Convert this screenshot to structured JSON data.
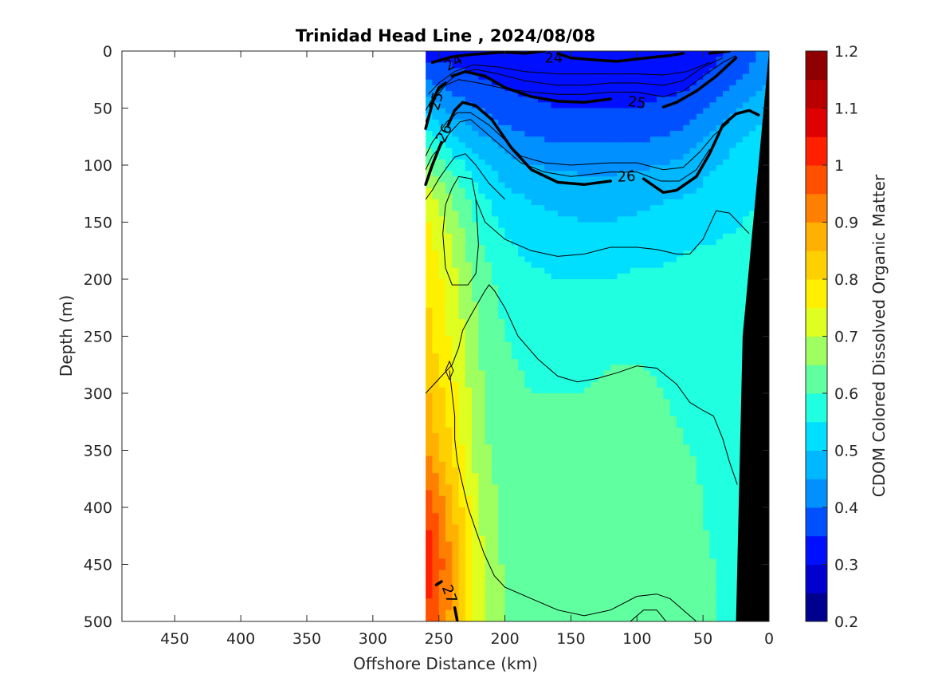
{
  "chart_data": {
    "type": "heatmap",
    "title": "Trinidad Head Line , 2024/08/08",
    "xlabel": "Offshore Distance (km)",
    "ylabel": "Depth (m)",
    "colorbar_label": "CDOM Colored Dissolved Organic Matter",
    "xlim": [
      490,
      0
    ],
    "ylim": [
      0,
      500
    ],
    "x_reversed": true,
    "y_reversed": true,
    "x_ticks": [
      450,
      400,
      350,
      300,
      250,
      200,
      150,
      100,
      50,
      0
    ],
    "y_ticks": [
      0,
      50,
      100,
      150,
      200,
      250,
      300,
      350,
      400,
      450,
      500
    ],
    "colorbar": {
      "min": 0.2,
      "max": 1.2,
      "levels": 20,
      "ticks": [
        1.2,
        1.1,
        1,
        0.9,
        0.8,
        0.7,
        0.6,
        0.5,
        0.4,
        0.3,
        0.2
      ],
      "colors": [
        "#00008f",
        "#0000cf",
        "#0010ff",
        "#0050ff",
        "#0090ff",
        "#00b8ff",
        "#00dfff",
        "#20ffdf",
        "#60ff9f",
        "#a0ff60",
        "#dfff20",
        "#fff000",
        "#ffd000",
        "#ffb000",
        "#ff8000",
        "#ff5000",
        "#ff2000",
        "#df0000",
        "#b80000",
        "#8f0000"
      ]
    },
    "data_extent_km": [
      260,
      0
    ],
    "field_profiles": {
      "distance_km": [
        260,
        240,
        220,
        200,
        180,
        160,
        140,
        120,
        100,
        80,
        60,
        40,
        20,
        0
      ],
      "depth_m": [
        0,
        25,
        50,
        75,
        100,
        125,
        150,
        200,
        250,
        300,
        350,
        400,
        450,
        500
      ],
      "cdom": [
        [
          0.33,
          0.33,
          0.33,
          0.33,
          0.33,
          0.33,
          0.33,
          0.33,
          0.33,
          0.33,
          0.33,
          0.34,
          0.37,
          0.42
        ],
        [
          0.4,
          0.37,
          0.35,
          0.34,
          0.33,
          0.33,
          0.33,
          0.33,
          0.33,
          0.33,
          0.34,
          0.36,
          0.4,
          0.45
        ],
        [
          0.48,
          0.43,
          0.4,
          0.37,
          0.36,
          0.35,
          0.35,
          0.35,
          0.35,
          0.36,
          0.37,
          0.42,
          0.46,
          0.5
        ],
        [
          0.58,
          0.5,
          0.46,
          0.42,
          0.4,
          0.39,
          0.39,
          0.39,
          0.39,
          0.4,
          0.42,
          0.47,
          0.5,
          0.52
        ],
        [
          0.66,
          0.58,
          0.52,
          0.47,
          0.45,
          0.44,
          0.44,
          0.44,
          0.44,
          0.45,
          0.47,
          0.5,
          0.52,
          0.54
        ],
        [
          0.72,
          0.64,
          0.56,
          0.51,
          0.49,
          0.48,
          0.47,
          0.47,
          0.48,
          0.49,
          0.5,
          0.52,
          0.54,
          0.55
        ],
        [
          0.76,
          0.68,
          0.59,
          0.54,
          0.52,
          0.51,
          0.5,
          0.5,
          0.51,
          0.52,
          0.53,
          0.54,
          0.55,
          0.56
        ],
        [
          0.8,
          0.72,
          0.63,
          0.58,
          0.56,
          0.55,
          0.55,
          0.55,
          0.56,
          0.56,
          0.57,
          0.57,
          0.57,
          0.58
        ],
        [
          0.82,
          0.74,
          0.65,
          0.6,
          0.59,
          0.58,
          0.58,
          0.59,
          0.59,
          0.59,
          0.58,
          0.58,
          0.58,
          0.58
        ],
        [
          0.86,
          0.77,
          0.66,
          0.61,
          0.6,
          0.6,
          0.6,
          0.61,
          0.61,
          0.6,
          0.59,
          0.58,
          0.58,
          0.58
        ],
        [
          0.9,
          0.8,
          0.67,
          0.62,
          0.61,
          0.61,
          0.62,
          0.62,
          0.62,
          0.61,
          0.6,
          0.59,
          0.58,
          0.58
        ],
        [
          1.0,
          0.86,
          0.7,
          0.63,
          0.62,
          0.62,
          0.63,
          0.63,
          0.63,
          0.62,
          0.61,
          0.59,
          0.58,
          0.58
        ],
        [
          1.04,
          0.9,
          0.72,
          0.64,
          0.63,
          0.63,
          0.63,
          0.64,
          0.64,
          0.63,
          0.61,
          0.6,
          0.58,
          0.58
        ],
        [
          1.0,
          0.88,
          0.72,
          0.65,
          0.63,
          0.63,
          0.63,
          0.64,
          0.64,
          0.63,
          0.62,
          0.6,
          0.58,
          0.58
        ]
      ]
    },
    "bottom_mask": [
      [
        25,
        500
      ],
      [
        0,
        500
      ],
      [
        0,
        0
      ],
      [
        20,
        250
      ]
    ],
    "isopycnals": [
      {
        "label": "24",
        "bold": true,
        "points": [
          [
            255,
            10
          ],
          [
            240,
            5
          ],
          [
            225,
            3
          ],
          [
            200,
            1
          ],
          [
            185,
            2
          ],
          [
            170,
            0
          ]
        ],
        "points2": [
          [
            160,
            2
          ],
          [
            150,
            6
          ],
          [
            130,
            8
          ],
          [
            115,
            9
          ],
          [
            100,
            7
          ],
          [
            85,
            5
          ],
          [
            75,
            4
          ],
          [
            65,
            2
          ]
        ],
        "points3": [
          [
            45,
            2
          ],
          [
            30,
            0
          ]
        ]
      },
      {
        "label": "25",
        "bold": true,
        "points": [
          [
            260,
            68
          ],
          [
            257,
            55
          ],
          [
            254,
            42
          ],
          [
            250,
            32
          ],
          [
            245,
            28
          ]
        ],
        "points2": [
          [
            240,
            22
          ],
          [
            230,
            18
          ],
          [
            215,
            22
          ],
          [
            200,
            32
          ],
          [
            180,
            40
          ],
          [
            160,
            44
          ],
          [
            140,
            45
          ],
          [
            120,
            42
          ]
        ],
        "points3": [
          [
            80,
            49
          ],
          [
            70,
            45
          ],
          [
            55,
            35
          ],
          [
            40,
            22
          ],
          [
            25,
            6
          ]
        ]
      },
      {
        "label": "26",
        "bold": true,
        "points": [
          [
            260,
            117
          ],
          [
            255,
            100
          ],
          [
            248,
            80
          ]
        ],
        "points2": [
          [
            243,
            65
          ],
          [
            238,
            52
          ],
          [
            232,
            45
          ],
          [
            222,
            48
          ],
          [
            210,
            60
          ],
          [
            195,
            85
          ],
          [
            180,
            104
          ],
          [
            160,
            115
          ],
          [
            140,
            117
          ],
          [
            120,
            114
          ]
        ],
        "points3": [
          [
            95,
            112
          ],
          [
            80,
            124
          ],
          [
            70,
            122
          ],
          [
            55,
            110
          ],
          [
            45,
            90
          ],
          [
            35,
            65
          ],
          [
            25,
            55
          ],
          [
            15,
            52
          ],
          [
            8,
            56
          ]
        ]
      },
      {
        "label": "27",
        "bold": true,
        "points": [
          [
            236,
            500
          ],
          [
            238,
            488
          ]
        ],
        "points2": [
          [
            248,
            465
          ],
          [
            252,
            468
          ]
        ],
        "points3": []
      }
    ],
    "thin_contours": [
      [
        [
          260,
          62
        ],
        [
          256,
          50
        ],
        [
          252,
          40
        ],
        [
          245,
          30
        ],
        [
          235,
          25
        ],
        [
          220,
          28
        ],
        [
          200,
          33
        ],
        [
          180,
          36
        ],
        [
          160,
          38
        ],
        [
          140,
          38
        ],
        [
          120,
          36
        ],
        [
          100,
          36
        ],
        [
          80,
          40
        ],
        [
          65,
          35
        ],
        [
          50,
          22
        ],
        [
          35,
          10
        ],
        [
          25,
          4
        ]
      ],
      [
        [
          260,
          52
        ],
        [
          254,
          40
        ],
        [
          246,
          30
        ],
        [
          236,
          20
        ],
        [
          222,
          16
        ],
        [
          205,
          20
        ],
        [
          185,
          26
        ],
        [
          160,
          30
        ],
        [
          140,
          30
        ],
        [
          120,
          28
        ],
        [
          100,
          28
        ],
        [
          80,
          30
        ],
        [
          65,
          26
        ],
        [
          50,
          14
        ],
        [
          35,
          6
        ]
      ],
      [
        [
          258,
          38
        ],
        [
          250,
          28
        ],
        [
          238,
          18
        ],
        [
          224,
          12
        ],
        [
          205,
          14
        ],
        [
          185,
          18
        ],
        [
          160,
          20
        ],
        [
          130,
          20
        ],
        [
          100,
          20
        ],
        [
          80,
          21
        ],
        [
          62,
          18
        ],
        [
          45,
          10
        ]
      ],
      [
        [
          260,
          92
        ],
        [
          255,
          80
        ],
        [
          250,
          72
        ],
        [
          244,
          62
        ],
        [
          236,
          54
        ],
        [
          226,
          54
        ],
        [
          212,
          65
        ],
        [
          200,
          78
        ],
        [
          188,
          92
        ],
        [
          170,
          98
        ],
        [
          150,
          100
        ],
        [
          120,
          98
        ],
        [
          100,
          98
        ],
        [
          80,
          104
        ],
        [
          65,
          102
        ],
        [
          52,
          88
        ],
        [
          42,
          74
        ],
        [
          30,
          62
        ]
      ],
      [
        [
          260,
          104
        ],
        [
          255,
          92
        ],
        [
          249,
          84
        ],
        [
          242,
          72
        ],
        [
          234,
          62
        ],
        [
          226,
          60
        ],
        [
          214,
          72
        ],
        [
          202,
          84
        ],
        [
          188,
          98
        ],
        [
          170,
          106
        ],
        [
          150,
          110
        ],
        [
          120,
          106
        ],
        [
          100,
          106
        ],
        [
          82,
          114
        ],
        [
          68,
          114
        ],
        [
          55,
          104
        ],
        [
          45,
          86
        ]
      ],
      [
        [
          260,
          130
        ],
        [
          255,
          122
        ],
        [
          250,
          112
        ],
        [
          244,
          102
        ],
        [
          238,
          93
        ],
        [
          230,
          90
        ],
        [
          222,
          100
        ],
        [
          212,
          116
        ],
        [
          200,
          130
        ]
      ],
      [
        [
          240,
          120
        ],
        [
          235,
          110
        ],
        [
          225,
          112
        ],
        [
          222,
          130
        ],
        [
          220,
          170
        ],
        [
          222,
          195
        ],
        [
          228,
          205
        ],
        [
          240,
          205
        ],
        [
          245,
          190
        ],
        [
          247,
          160
        ],
        [
          245,
          135
        ],
        [
          240,
          120
        ]
      ],
      [
        [
          222,
          130
        ],
        [
          215,
          150
        ],
        [
          200,
          165
        ],
        [
          180,
          175
        ],
        [
          160,
          180
        ],
        [
          140,
          178
        ],
        [
          120,
          172
        ],
        [
          100,
          172
        ],
        [
          85,
          174
        ],
        [
          70,
          178
        ],
        [
          60,
          178
        ],
        [
          50,
          165
        ],
        [
          40,
          140
        ],
        [
          30,
          142
        ],
        [
          15,
          160
        ]
      ],
      [
        [
          260,
          300
        ],
        [
          248,
          285
        ],
        [
          240,
          275
        ],
        [
          235,
          260
        ],
        [
          232,
          245
        ],
        [
          225,
          230
        ],
        [
          220,
          220
        ],
        [
          215,
          210
        ],
        [
          212,
          205
        ],
        [
          208,
          210
        ],
        [
          200,
          225
        ],
        [
          190,
          250
        ],
        [
          175,
          270
        ],
        [
          160,
          285
        ],
        [
          145,
          290
        ],
        [
          130,
          287
        ],
        [
          115,
          282
        ],
        [
          100,
          276
        ],
        [
          85,
          278
        ],
        [
          70,
          292
        ],
        [
          60,
          308
        ],
        [
          50,
          315
        ],
        [
          42,
          320
        ],
        [
          35,
          340
        ],
        [
          30,
          360
        ],
        [
          24,
          380
        ]
      ],
      [
        [
          245,
          280
        ],
        [
          242,
          272
        ],
        [
          239,
          280
        ],
        [
          242,
          288
        ],
        [
          245,
          280
        ]
      ],
      [
        [
          242,
          280
        ],
        [
          240,
          300
        ],
        [
          238,
          320
        ],
        [
          238,
          340
        ],
        [
          236,
          360
        ],
        [
          232,
          380
        ],
        [
          228,
          400
        ],
        [
          222,
          420
        ],
        [
          216,
          440
        ],
        [
          208,
          460
        ],
        [
          200,
          470
        ],
        [
          180,
          480
        ],
        [
          160,
          490
        ],
        [
          140,
          495
        ],
        [
          120,
          490
        ],
        [
          100,
          478
        ],
        [
          85,
          476
        ],
        [
          75,
          480
        ],
        [
          65,
          490
        ],
        [
          55,
          500
        ]
      ],
      [
        [
          105,
          500
        ],
        [
          95,
          490
        ],
        [
          85,
          490
        ],
        [
          78,
          500
        ]
      ]
    ]
  }
}
